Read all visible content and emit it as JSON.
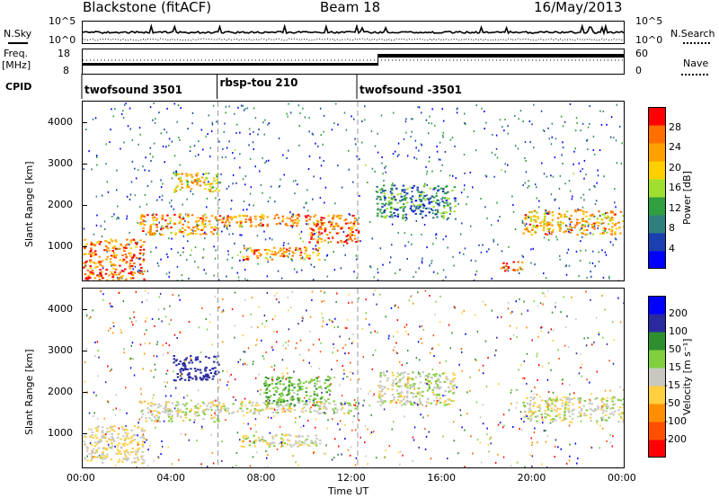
{
  "header": {
    "radar": "Blackstone (fitACF)",
    "beam": "Beam 18",
    "date": "16/May/2013"
  },
  "top_panels": {
    "nsky_label": "N.Sky",
    "nsearch_label": "N.Search",
    "nsky_ticks": [
      "10^5",
      "10^0"
    ],
    "nsearch_ticks": [
      "10^5",
      "10^0"
    ],
    "freq_label": "Freq.",
    "freq_unit": "[MHz]",
    "freq_ticks": [
      "18",
      "8"
    ],
    "nave_label": "Nave",
    "nave_ticks": [
      "60",
      "0"
    ],
    "cpid_label": "CPID",
    "cpid_segments": [
      {
        "name": "twofsound 3501",
        "start_hour": 0,
        "end_hour": 6
      },
      {
        "name": "rbsp-tou 210",
        "start_hour": 6,
        "end_hour": 12.2
      },
      {
        "name": "twofsound -3501",
        "start_hour": 12.2,
        "end_hour": 24
      }
    ]
  },
  "chart_data": [
    {
      "type": "heatmap",
      "title": "",
      "xlabel": "",
      "ylabel": "Slant Range [km]",
      "xlim": [
        0,
        24
      ],
      "ylim": [
        180,
        4500
      ],
      "y_ticks": [
        1000,
        2000,
        3000,
        4000
      ],
      "colorbar": {
        "label": "Power [dB]",
        "ticks": [
          4,
          8,
          12,
          16,
          20,
          24,
          28
        ],
        "range": [
          0,
          32
        ],
        "colors": [
          "#0000ff",
          "#1a3faf",
          "#2f7f7f",
          "#2f9f3f",
          "#9fdf2f",
          "#ffcf00",
          "#ff9f00",
          "#ff6f00",
          "#ff0000"
        ]
      },
      "regions": [
        {
          "x": [
            0,
            2.7
          ],
          "y": [
            200,
            1200
          ],
          "level": 26
        },
        {
          "x": [
            2.5,
            6
          ],
          "y": [
            1300,
            1800
          ],
          "level": 24
        },
        {
          "x": [
            4,
            6
          ],
          "y": [
            2300,
            2800
          ],
          "level": 20
        },
        {
          "x": [
            6,
            12.2
          ],
          "y": [
            1500,
            1800
          ],
          "level": 24
        },
        {
          "x": [
            7,
            10.5
          ],
          "y": [
            700,
            1000
          ],
          "level": 24
        },
        {
          "x": [
            10,
            12.2
          ],
          "y": [
            1100,
            1600
          ],
          "level": 26
        },
        {
          "x": [
            13,
            16.5
          ],
          "y": [
            1700,
            2500
          ],
          "level": 10
        },
        {
          "x": [
            18.5,
            19.5
          ],
          "y": [
            400,
            650
          ],
          "level": 28
        },
        {
          "x": [
            19.5,
            24
          ],
          "y": [
            1300,
            1900
          ],
          "level": 22
        }
      ]
    },
    {
      "type": "heatmap",
      "title": "",
      "xlabel": "Time UT",
      "ylabel": "Slant Range [km]",
      "xlim": [
        0,
        24
      ],
      "ylim": [
        180,
        4500
      ],
      "x_ticks": [
        "00:00",
        "04:00",
        "08:00",
        "12:00",
        "16:00",
        "20:00",
        "00:00"
      ],
      "y_ticks": [
        1000,
        2000,
        3000,
        4000
      ],
      "colorbar": {
        "label": "Velocity [m s⁻¹]",
        "ticks": [
          200,
          100,
          50,
          15,
          -15,
          -50,
          -100,
          -200
        ],
        "colors": [
          "#0000ff",
          "#2a2aa0",
          "#2f8f2f",
          "#7fcf3f",
          "#c8c8c0",
          "#ffcf3f",
          "#ff8f00",
          "#ff4f00",
          "#ff0000"
        ]
      },
      "regions": [
        {
          "x": [
            0,
            2.7
          ],
          "y": [
            300,
            1200
          ],
          "velocity": -15
        },
        {
          "x": [
            2.5,
            6
          ],
          "y": [
            1300,
            1800
          ],
          "velocity": 0
        },
        {
          "x": [
            4,
            6
          ],
          "y": [
            2300,
            2900
          ],
          "velocity": 150
        },
        {
          "x": [
            6,
            12.2
          ],
          "y": [
            1500,
            1800
          ],
          "velocity": 0
        },
        {
          "x": [
            7,
            10.5
          ],
          "y": [
            700,
            1000
          ],
          "velocity": 0
        },
        {
          "x": [
            8,
            11
          ],
          "y": [
            1700,
            2400
          ],
          "velocity": 40
        },
        {
          "x": [
            13,
            16.5
          ],
          "y": [
            1700,
            2500
          ],
          "velocity": 0
        },
        {
          "x": [
            19.5,
            24
          ],
          "y": [
            1300,
            1900
          ],
          "velocity": 0
        }
      ]
    }
  ]
}
